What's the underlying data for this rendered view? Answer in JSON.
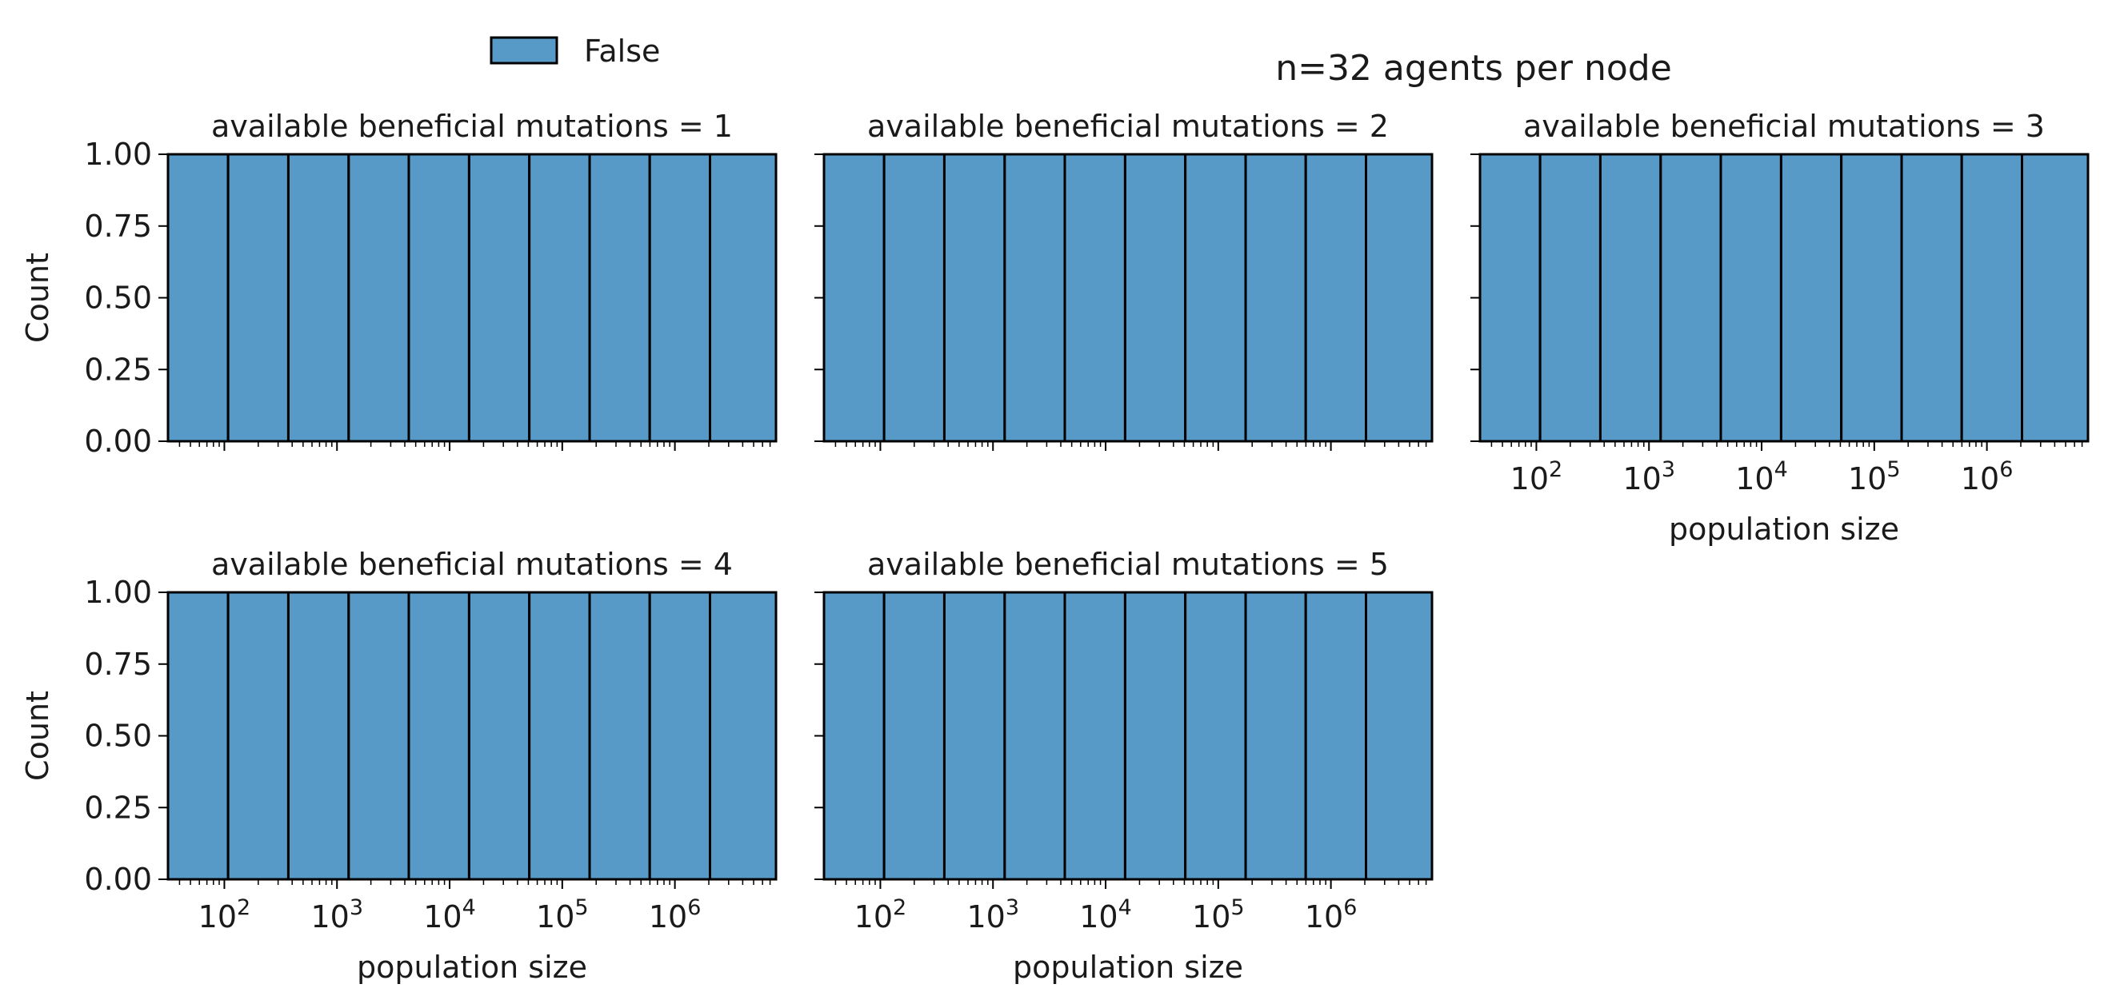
{
  "suptitle": "n=32 agents per node",
  "legend": {
    "label": "False",
    "color": "#5799c7"
  },
  "colors": {
    "bar_fill": "#5799c7",
    "bar_edge": "#000000",
    "axis": "#000000"
  },
  "chart_data": [
    {
      "type": "bar",
      "title": "available beneficial mutations = 1",
      "xlabel": "",
      "ylabel": "Count",
      "x_scale": "log",
      "xlim": [
        31.6,
        7900000
      ],
      "ylim": [
        0,
        1
      ],
      "yticks": [
        "0.00",
        "0.25",
        "0.50",
        "0.75",
        "1.00"
      ],
      "xticks": [],
      "bin_edges": [
        31.6,
        108,
        370,
        1270,
        4340,
        14900,
        51000,
        175000,
        598000,
        2050000,
        7900000
      ],
      "values": [
        1,
        1,
        1,
        1,
        1,
        1,
        1,
        1,
        1,
        1
      ],
      "series": [
        {
          "name": "False",
          "values": [
            1,
            1,
            1,
            1,
            1,
            1,
            1,
            1,
            1,
            1
          ]
        }
      ]
    },
    {
      "type": "bar",
      "title": "available beneficial mutations = 2",
      "xlabel": "",
      "ylabel": "",
      "x_scale": "log",
      "xlim": [
        31.6,
        7900000
      ],
      "ylim": [
        0,
        1
      ],
      "yticks": [],
      "xticks": [],
      "bin_edges": [
        31.6,
        108,
        370,
        1270,
        4340,
        14900,
        51000,
        175000,
        598000,
        2050000,
        7900000
      ],
      "values": [
        1,
        1,
        1,
        1,
        1,
        1,
        1,
        1,
        1,
        1
      ],
      "series": [
        {
          "name": "False",
          "values": [
            1,
            1,
            1,
            1,
            1,
            1,
            1,
            1,
            1,
            1
          ]
        }
      ]
    },
    {
      "type": "bar",
      "title": "available beneficial mutations = 3",
      "xlabel": "population size",
      "ylabel": "",
      "x_scale": "log",
      "xlim": [
        31.6,
        7900000
      ],
      "ylim": [
        0,
        1
      ],
      "yticks": [],
      "xticks": [
        {
          "base": "10",
          "exp": "2"
        },
        {
          "base": "10",
          "exp": "3"
        },
        {
          "base": "10",
          "exp": "4"
        },
        {
          "base": "10",
          "exp": "5"
        },
        {
          "base": "10",
          "exp": "6"
        }
      ],
      "bin_edges": [
        31.6,
        108,
        370,
        1270,
        4340,
        14900,
        51000,
        175000,
        598000,
        2050000,
        7900000
      ],
      "values": [
        1,
        1,
        1,
        1,
        1,
        1,
        1,
        1,
        1,
        1
      ],
      "series": [
        {
          "name": "False",
          "values": [
            1,
            1,
            1,
            1,
            1,
            1,
            1,
            1,
            1,
            1
          ]
        }
      ]
    },
    {
      "type": "bar",
      "title": "available beneficial mutations = 4",
      "xlabel": "population size",
      "ylabel": "Count",
      "x_scale": "log",
      "xlim": [
        31.6,
        7900000
      ],
      "ylim": [
        0,
        1
      ],
      "yticks": [
        "0.00",
        "0.25",
        "0.50",
        "0.75",
        "1.00"
      ],
      "xticks": [
        {
          "base": "10",
          "exp": "2"
        },
        {
          "base": "10",
          "exp": "3"
        },
        {
          "base": "10",
          "exp": "4"
        },
        {
          "base": "10",
          "exp": "5"
        },
        {
          "base": "10",
          "exp": "6"
        }
      ],
      "bin_edges": [
        31.6,
        108,
        370,
        1270,
        4340,
        14900,
        51000,
        175000,
        598000,
        2050000,
        7900000
      ],
      "values": [
        1,
        1,
        1,
        1,
        1,
        1,
        1,
        1,
        1,
        1
      ],
      "series": [
        {
          "name": "False",
          "values": [
            1,
            1,
            1,
            1,
            1,
            1,
            1,
            1,
            1,
            1
          ]
        }
      ]
    },
    {
      "type": "bar",
      "title": "available beneficial mutations = 5",
      "xlabel": "population size",
      "ylabel": "",
      "x_scale": "log",
      "xlim": [
        31.6,
        7900000
      ],
      "ylim": [
        0,
        1
      ],
      "yticks": [],
      "xticks": [
        {
          "base": "10",
          "exp": "2"
        },
        {
          "base": "10",
          "exp": "3"
        },
        {
          "base": "10",
          "exp": "4"
        },
        {
          "base": "10",
          "exp": "5"
        },
        {
          "base": "10",
          "exp": "6"
        }
      ],
      "bin_edges": [
        31.6,
        108,
        370,
        1270,
        4340,
        14900,
        51000,
        175000,
        598000,
        2050000,
        7900000
      ],
      "values": [
        1,
        1,
        1,
        1,
        1,
        1,
        1,
        1,
        1,
        1
      ],
      "series": [
        {
          "name": "False",
          "values": [
            1,
            1,
            1,
            1,
            1,
            1,
            1,
            1,
            1,
            1
          ]
        }
      ]
    }
  ]
}
